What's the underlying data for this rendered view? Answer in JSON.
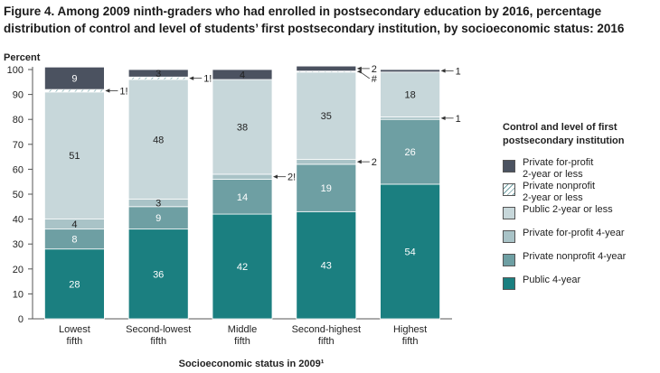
{
  "title_lines": [
    "Figure 4. Among 2009 ninth-graders who had enrolled in postsecondary education by 2016, percentage",
    "distribution of control and level of students’ first postsecondary institution, by socioeconomic status: 2016"
  ],
  "chart_data": {
    "type": "bar",
    "stacked": true,
    "ylabel": "Percent",
    "xlabel": "Socioeconomic status in 2009¹",
    "ylim": [
      0,
      100
    ],
    "yticks": [
      0,
      10,
      20,
      30,
      40,
      50,
      60,
      70,
      80,
      90,
      100
    ],
    "categories": [
      "Lowest\nfifth",
      "Second-lowest\nfifth",
      "Middle\nfifth",
      "Second-highest\nfifth",
      "Highest\nfifth"
    ],
    "legend_title": "Control and level of first\npostsecondary institution",
    "legend_position": "right",
    "series": [
      {
        "name": "Public 4-year",
        "color": "#1b7f80",
        "values": [
          28,
          36,
          42,
          43,
          54
        ],
        "labels": [
          "28",
          "36",
          "42",
          "43",
          "54"
        ]
      },
      {
        "name": "Private nonprofit 4-year",
        "color": "#6e9fa3",
        "values": [
          8,
          9,
          14,
          19,
          26
        ],
        "labels": [
          "8",
          "9",
          "14",
          "19",
          "26"
        ]
      },
      {
        "name": "Private for-profit 4-year",
        "color": "#a9c3c7",
        "values": [
          4,
          3,
          2,
          2,
          1
        ],
        "labels": [
          "4",
          "3",
          "2!",
          "2",
          "1"
        ]
      },
      {
        "name": "Public 2-year or less",
        "color": "#c7d7da",
        "values": [
          51,
          48,
          38,
          35,
          18
        ],
        "labels": [
          "51",
          "48",
          "38",
          "35",
          "18"
        ]
      },
      {
        "name": "Private nonprofit\n2-year or less",
        "color": "#ffffff",
        "hatched": true,
        "values": [
          1,
          1,
          0,
          0.4,
          0
        ],
        "labels": [
          "1!",
          "1!",
          "",
          "#",
          ""
        ]
      },
      {
        "name": "Private for-profit\n2-year or less",
        "color": "#4b5260",
        "values": [
          9,
          3,
          4,
          2,
          1
        ],
        "labels": [
          "9",
          "3",
          "4",
          "2",
          "1"
        ]
      }
    ]
  }
}
